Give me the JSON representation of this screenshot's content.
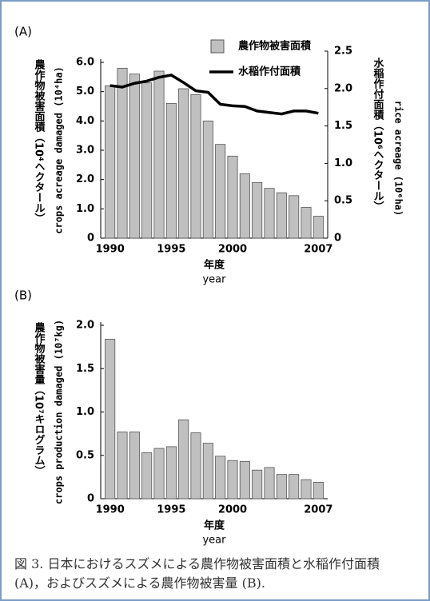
{
  "chart_data": [
    {
      "type": "bar",
      "panel_label": "(A)",
      "categories": [
        "1990",
        null,
        null,
        null,
        null,
        "1995",
        null,
        null,
        null,
        null,
        "2000",
        null,
        null,
        null,
        null,
        null,
        null,
        "2007"
      ],
      "series": [
        {
          "name": "農作物被害面積",
          "color": "#c0c0c0",
          "type": "bar",
          "values": [
            5.2,
            5.8,
            5.6,
            5.3,
            5.7,
            4.6,
            5.1,
            4.9,
            4.0,
            3.2,
            2.8,
            2.2,
            1.9,
            1.7,
            1.55,
            1.45,
            1.05,
            0.75
          ]
        },
        {
          "name": "水稲作付面積",
          "color": "#000000",
          "type": "line",
          "axis": "y2",
          "values": [
            2.04,
            2.02,
            2.07,
            2.1,
            2.15,
            2.18,
            2.08,
            1.97,
            1.95,
            1.79,
            1.77,
            1.76,
            1.7,
            1.68,
            1.66,
            1.7,
            1.7,
            1.67
          ]
        }
      ],
      "ylim": [
        0,
        6
      ],
      "yticks": [
        0,
        {
          "value": 1,
          "label": "1.0"
        },
        {
          "value": 2,
          "label": "2.0"
        },
        {
          "value": 3,
          "label": "3.0"
        },
        {
          "value": 4,
          "label": "4.0"
        },
        {
          "value": 5,
          "label": "5.0"
        },
        {
          "value": 6,
          "label": "6.0"
        }
      ],
      "y2lim": [
        0,
        2.5
      ],
      "y2ticks": [
        0,
        0.5,
        {
          "value": 1,
          "label": "1.0"
        },
        1.5,
        {
          "value": 2,
          "label": "2.0"
        },
        2.5
      ],
      "ylabel": "農作物被害面積（10⁴ヘクタール）",
      "ylabel_en": "crops acreage damaged (10⁴ha)",
      "y2label": "水稲作付面積（10⁶ヘクタール）",
      "y2label_en": "rice acreage (10⁶ha)",
      "xlabel": "年度",
      "xlabel_en": "year",
      "legend": "top-right"
    },
    {
      "type": "bar",
      "panel_label": "(B)",
      "categories": [
        "1990",
        null,
        null,
        null,
        null,
        "1995",
        null,
        null,
        null,
        null,
        "2000",
        null,
        null,
        null,
        null,
        null,
        null,
        "2007"
      ],
      "values": [
        1.84,
        0.77,
        0.77,
        0.53,
        0.58,
        0.6,
        0.91,
        0.76,
        0.64,
        0.49,
        0.44,
        0.43,
        0.33,
        0.36,
        0.28,
        0.28,
        0.22,
        0.19
      ],
      "color": "#c0c0c0",
      "ylim": [
        0,
        2
      ],
      "yticks": [
        0,
        0.5,
        {
          "value": 1,
          "label": "1.0"
        },
        1.5,
        {
          "value": 2,
          "label": "2.0"
        }
      ],
      "ylabel": "農作物被害量（10⁷キログラム）",
      "ylabel_en": "crops production damaged (10⁷kg)",
      "xlabel": "年度",
      "xlabel_en": "year"
    }
  ],
  "caption": "図 3. 日本におけるスズメによる農作物被害面積と水稲作付面積 (A)，およびスズメによる農作物被害量 (B)."
}
